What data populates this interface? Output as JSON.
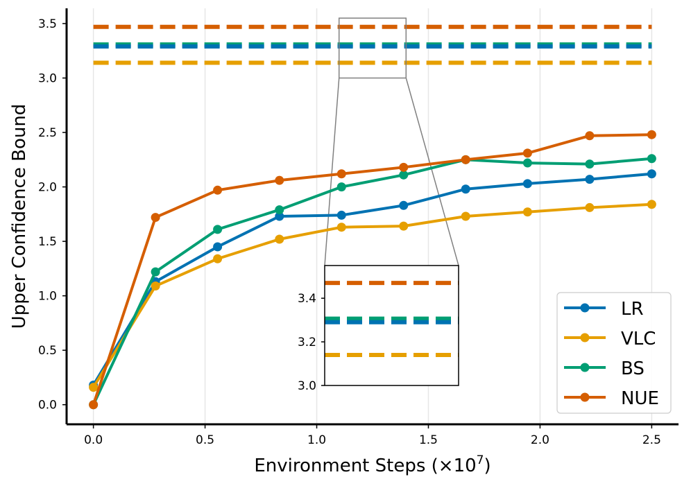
{
  "chart_data": {
    "type": "line",
    "title": "",
    "xlabel": "Environment Steps (×10",
    "xlabel_exponent": "7",
    "xlabel_suffix": ")",
    "ylabel": "Upper Confidence Bound",
    "xlim": [
      -0.12,
      2.62
    ],
    "ylim": [
      -0.18,
      3.64
    ],
    "xticks": [
      0.0,
      0.5,
      1.0,
      1.5,
      2.0,
      2.5
    ],
    "xtick_labels": [
      "0.0",
      "0.5",
      "1.0",
      "1.5",
      "2.0",
      "2.5"
    ],
    "yticks": [
      0.0,
      0.5,
      1.0,
      1.5,
      2.0,
      2.5,
      3.0,
      3.5
    ],
    "ytick_labels": [
      "0.0",
      "0.5",
      "1.0",
      "1.5",
      "2.0",
      "2.5",
      "3.0",
      "3.5"
    ],
    "grid": "vertical",
    "legend_position": "bottom-right",
    "x": [
      0.0,
      0.278,
      0.556,
      0.833,
      1.111,
      1.389,
      1.667,
      1.944,
      2.222,
      2.5
    ],
    "series": [
      {
        "name": "LR",
        "color": "#0072b2",
        "values": [
          0.18,
          1.13,
          1.45,
          1.73,
          1.74,
          1.83,
          1.98,
          2.03,
          2.07,
          2.12
        ]
      },
      {
        "name": "VLC",
        "color": "#e69f00",
        "values": [
          0.16,
          1.09,
          1.34,
          1.52,
          1.63,
          1.64,
          1.73,
          1.77,
          1.81,
          1.84
        ]
      },
      {
        "name": "BS",
        "color": "#009e73",
        "values": [
          0.0,
          1.22,
          1.61,
          1.79,
          2.0,
          2.11,
          2.25,
          2.22,
          2.21,
          2.26
        ]
      },
      {
        "name": "NUE",
        "color": "#d55e00",
        "values": [
          0.0,
          1.72,
          1.97,
          2.06,
          2.12,
          2.18,
          2.25,
          2.31,
          2.47,
          2.48
        ]
      }
    ],
    "reference_lines": [
      {
        "name": "NUE",
        "color": "#d55e00",
        "value": 3.47
      },
      {
        "name": "BS",
        "color": "#009e73",
        "value": 3.305
      },
      {
        "name": "LR",
        "color": "#0072b2",
        "value": 3.29
      },
      {
        "name": "VLC",
        "color": "#e69f00",
        "value": 3.14
      }
    ],
    "inset": {
      "xlim": [
        1.1,
        1.4
      ],
      "ylim": [
        3.0,
        3.55
      ],
      "yticks": [
        3.0,
        3.2,
        3.4
      ],
      "ytick_labels": [
        "3.0",
        "3.2",
        "3.4"
      ]
    }
  }
}
